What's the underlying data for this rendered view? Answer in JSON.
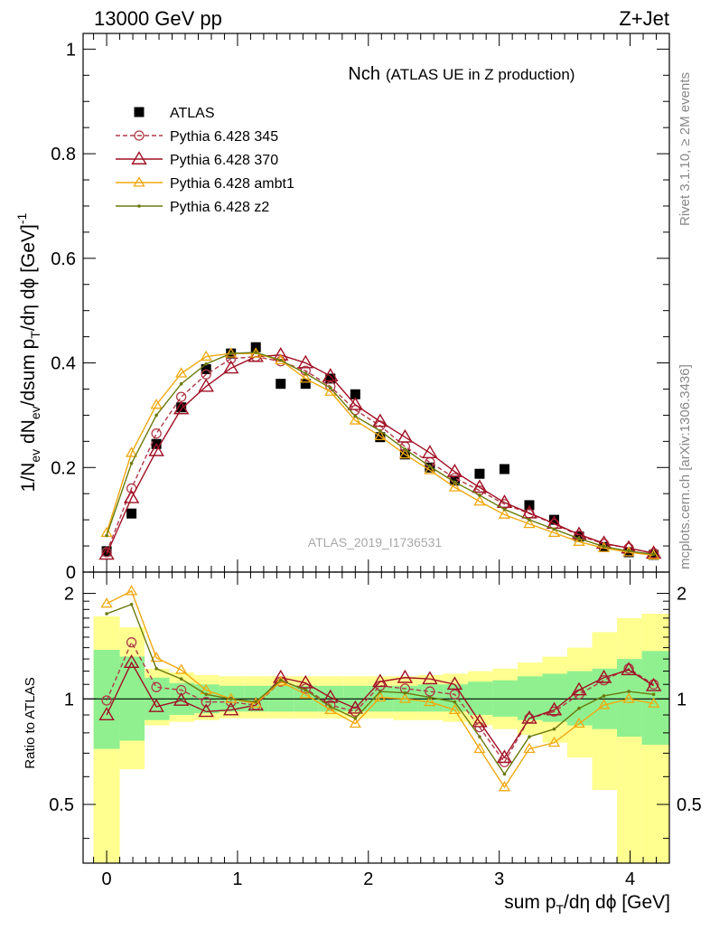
{
  "header": {
    "left": "13000 GeV pp",
    "right": "Z+Jet"
  },
  "side_labels": {
    "rivet": "Rivet 3.1.10, ≥ 2M events",
    "mcplots": "mcplots.cern.ch [arXiv:1306.3436]"
  },
  "colors": {
    "atlas": "#000000",
    "p345": "#b03a48",
    "p370": "#a01024",
    "ambt1": "#f0a810",
    "z2": "#6b7a0c",
    "band_inner": "#90f090",
    "band_outer": "#ffff90"
  },
  "chart_data": [
    {
      "type": "scatter",
      "title": "Nch",
      "subtitle": "(ATLAS UE in Z production)",
      "watermark": "ATLAS_2019_I1736531",
      "ylabel": "1/N_ev dN_ev/dsum p_T/dη dϕ [GeV]^-1",
      "xlim": [
        -0.18,
        4.3
      ],
      "ylim": [
        0,
        1.03
      ],
      "y_ticks": [
        "0",
        "0.2",
        "0.4",
        "0.6",
        "0.8",
        "1"
      ],
      "grid": false,
      "legend": "top-left",
      "x": [
        0,
        0.19,
        0.38,
        0.57,
        0.76,
        0.95,
        1.14,
        1.33,
        1.52,
        1.71,
        1.9,
        2.09,
        2.28,
        2.47,
        2.66,
        2.85,
        3.04,
        3.23,
        3.42,
        3.61,
        3.8,
        3.99,
        4.18
      ],
      "series": [
        {
          "name": "ATLAS",
          "style": "atlas",
          "values": [
            0.04,
            0.112,
            0.245,
            0.315,
            0.388,
            0.418,
            0.43,
            0.36,
            0.36,
            0.37,
            0.34,
            0.258,
            0.225,
            0.2,
            0.175,
            0.188,
            0.197,
            0.128,
            0.1,
            0.068,
            0.048,
            0.038,
            0.033
          ]
        },
        {
          "name": "Pythia 6.428 345",
          "style": "p345",
          "values": [
            0.038,
            0.16,
            0.265,
            0.335,
            0.378,
            0.408,
            0.412,
            0.403,
            0.385,
            0.355,
            0.31,
            0.28,
            0.24,
            0.21,
            0.18,
            0.156,
            0.13,
            0.112,
            0.092,
            0.07,
            0.054,
            0.046,
            0.036
          ]
        },
        {
          "name": "Pythia 6.428 370",
          "style": "p370",
          "values": [
            0.034,
            0.142,
            0.232,
            0.312,
            0.355,
            0.39,
            0.412,
            0.415,
            0.4,
            0.375,
            0.32,
            0.288,
            0.258,
            0.228,
            0.192,
            0.162,
            0.133,
            0.113,
            0.093,
            0.072,
            0.055,
            0.046,
            0.036
          ]
        },
        {
          "name": "Pythia 6.428 ambt1",
          "style": "ambt1",
          "values": [
            0.075,
            0.228,
            0.32,
            0.38,
            0.412,
            0.418,
            0.418,
            0.405,
            0.37,
            0.345,
            0.29,
            0.26,
            0.225,
            0.195,
            0.162,
            0.135,
            0.11,
            0.092,
            0.075,
            0.058,
            0.046,
            0.038,
            0.032
          ]
        },
        {
          "name": "Pythia 6.428 z2",
          "style": "z2",
          "values": [
            0.07,
            0.208,
            0.3,
            0.36,
            0.398,
            0.418,
            0.42,
            0.405,
            0.38,
            0.352,
            0.298,
            0.27,
            0.235,
            0.202,
            0.172,
            0.147,
            0.12,
            0.1,
            0.082,
            0.064,
            0.049,
            0.04,
            0.034
          ]
        }
      ]
    },
    {
      "type": "line",
      "ylabel": "Ratio to ATLAS",
      "xlabel": "sum p_T/dη dϕ [GeV]",
      "xlim": [
        -0.18,
        4.3
      ],
      "ylim": [
        0.34,
        2.3
      ],
      "log_y": true,
      "x_ticks": [
        "0",
        "1",
        "2",
        "3",
        "4"
      ],
      "y_ticks": [
        "0.5",
        "1",
        "2"
      ],
      "reference_line": 1,
      "x_edges": [
        -0.1,
        0.1,
        0.29,
        0.48,
        0.67,
        0.86,
        1.05,
        1.24,
        1.43,
        1.62,
        1.81,
        2.0,
        2.19,
        2.38,
        2.57,
        2.76,
        2.95,
        3.14,
        3.33,
        3.52,
        3.71,
        3.9,
        4.09,
        4.3
      ],
      "band_inner": {
        "low": [
          0.72,
          0.76,
          0.87,
          0.9,
          0.91,
          0.92,
          0.92,
          0.92,
          0.92,
          0.92,
          0.92,
          0.92,
          0.92,
          0.92,
          0.92,
          0.9,
          0.89,
          0.87,
          0.86,
          0.84,
          0.82,
          0.78,
          0.74
        ],
        "high": [
          1.38,
          1.32,
          1.15,
          1.11,
          1.1,
          1.09,
          1.09,
          1.09,
          1.09,
          1.09,
          1.09,
          1.09,
          1.09,
          1.1,
          1.1,
          1.12,
          1.13,
          1.16,
          1.18,
          1.2,
          1.22,
          1.3,
          1.37
        ]
      },
      "band_outer": {
        "low": [
          0.34,
          0.63,
          0.84,
          0.86,
          0.87,
          0.88,
          0.88,
          0.88,
          0.88,
          0.88,
          0.88,
          0.88,
          0.87,
          0.87,
          0.86,
          0.84,
          0.82,
          0.79,
          0.75,
          0.68,
          0.55,
          0.34,
          0.34
        ],
        "high": [
          1.72,
          1.6,
          1.22,
          1.19,
          1.17,
          1.16,
          1.16,
          1.16,
          1.16,
          1.16,
          1.16,
          1.16,
          1.16,
          1.17,
          1.18,
          1.2,
          1.22,
          1.27,
          1.32,
          1.4,
          1.55,
          1.7,
          1.75
        ]
      },
      "series": [
        {
          "name": "Pythia 6.428 345",
          "style": "p345",
          "values": [
            0.99,
            1.45,
            1.08,
            1.06,
            0.98,
            0.98,
            0.96,
            1.12,
            1.07,
            0.96,
            0.92,
            1.09,
            1.07,
            1.05,
            1.03,
            0.83,
            0.66,
            0.88,
            0.92,
            1.03,
            1.13,
            1.22,
            1.1
          ]
        },
        {
          "name": "Pythia 6.428 370",
          "style": "p370",
          "values": [
            0.9,
            1.27,
            0.95,
            0.99,
            0.92,
            0.93,
            0.96,
            1.15,
            1.11,
            1.01,
            0.94,
            1.12,
            1.15,
            1.14,
            1.1,
            0.86,
            0.68,
            0.88,
            0.93,
            1.06,
            1.15,
            1.21,
            1.09
          ]
        },
        {
          "name": "Pythia 6.428 ambt1",
          "style": "ambt1",
          "values": [
            1.87,
            2.03,
            1.31,
            1.21,
            1.06,
            1.0,
            0.97,
            1.12,
            1.03,
            0.93,
            0.85,
            1.01,
            1.0,
            0.98,
            0.93,
            0.72,
            0.56,
            0.72,
            0.75,
            0.85,
            0.96,
            1.0,
            0.97
          ]
        },
        {
          "name": "Pythia 6.428 z2",
          "style": "z2",
          "values": [
            1.75,
            1.86,
            1.22,
            1.14,
            1.03,
            1.0,
            0.98,
            1.13,
            1.06,
            0.95,
            0.88,
            1.05,
            1.04,
            1.01,
            0.98,
            0.78,
            0.61,
            0.78,
            0.82,
            0.94,
            1.02,
            1.05,
            1.03
          ]
        }
      ]
    }
  ]
}
